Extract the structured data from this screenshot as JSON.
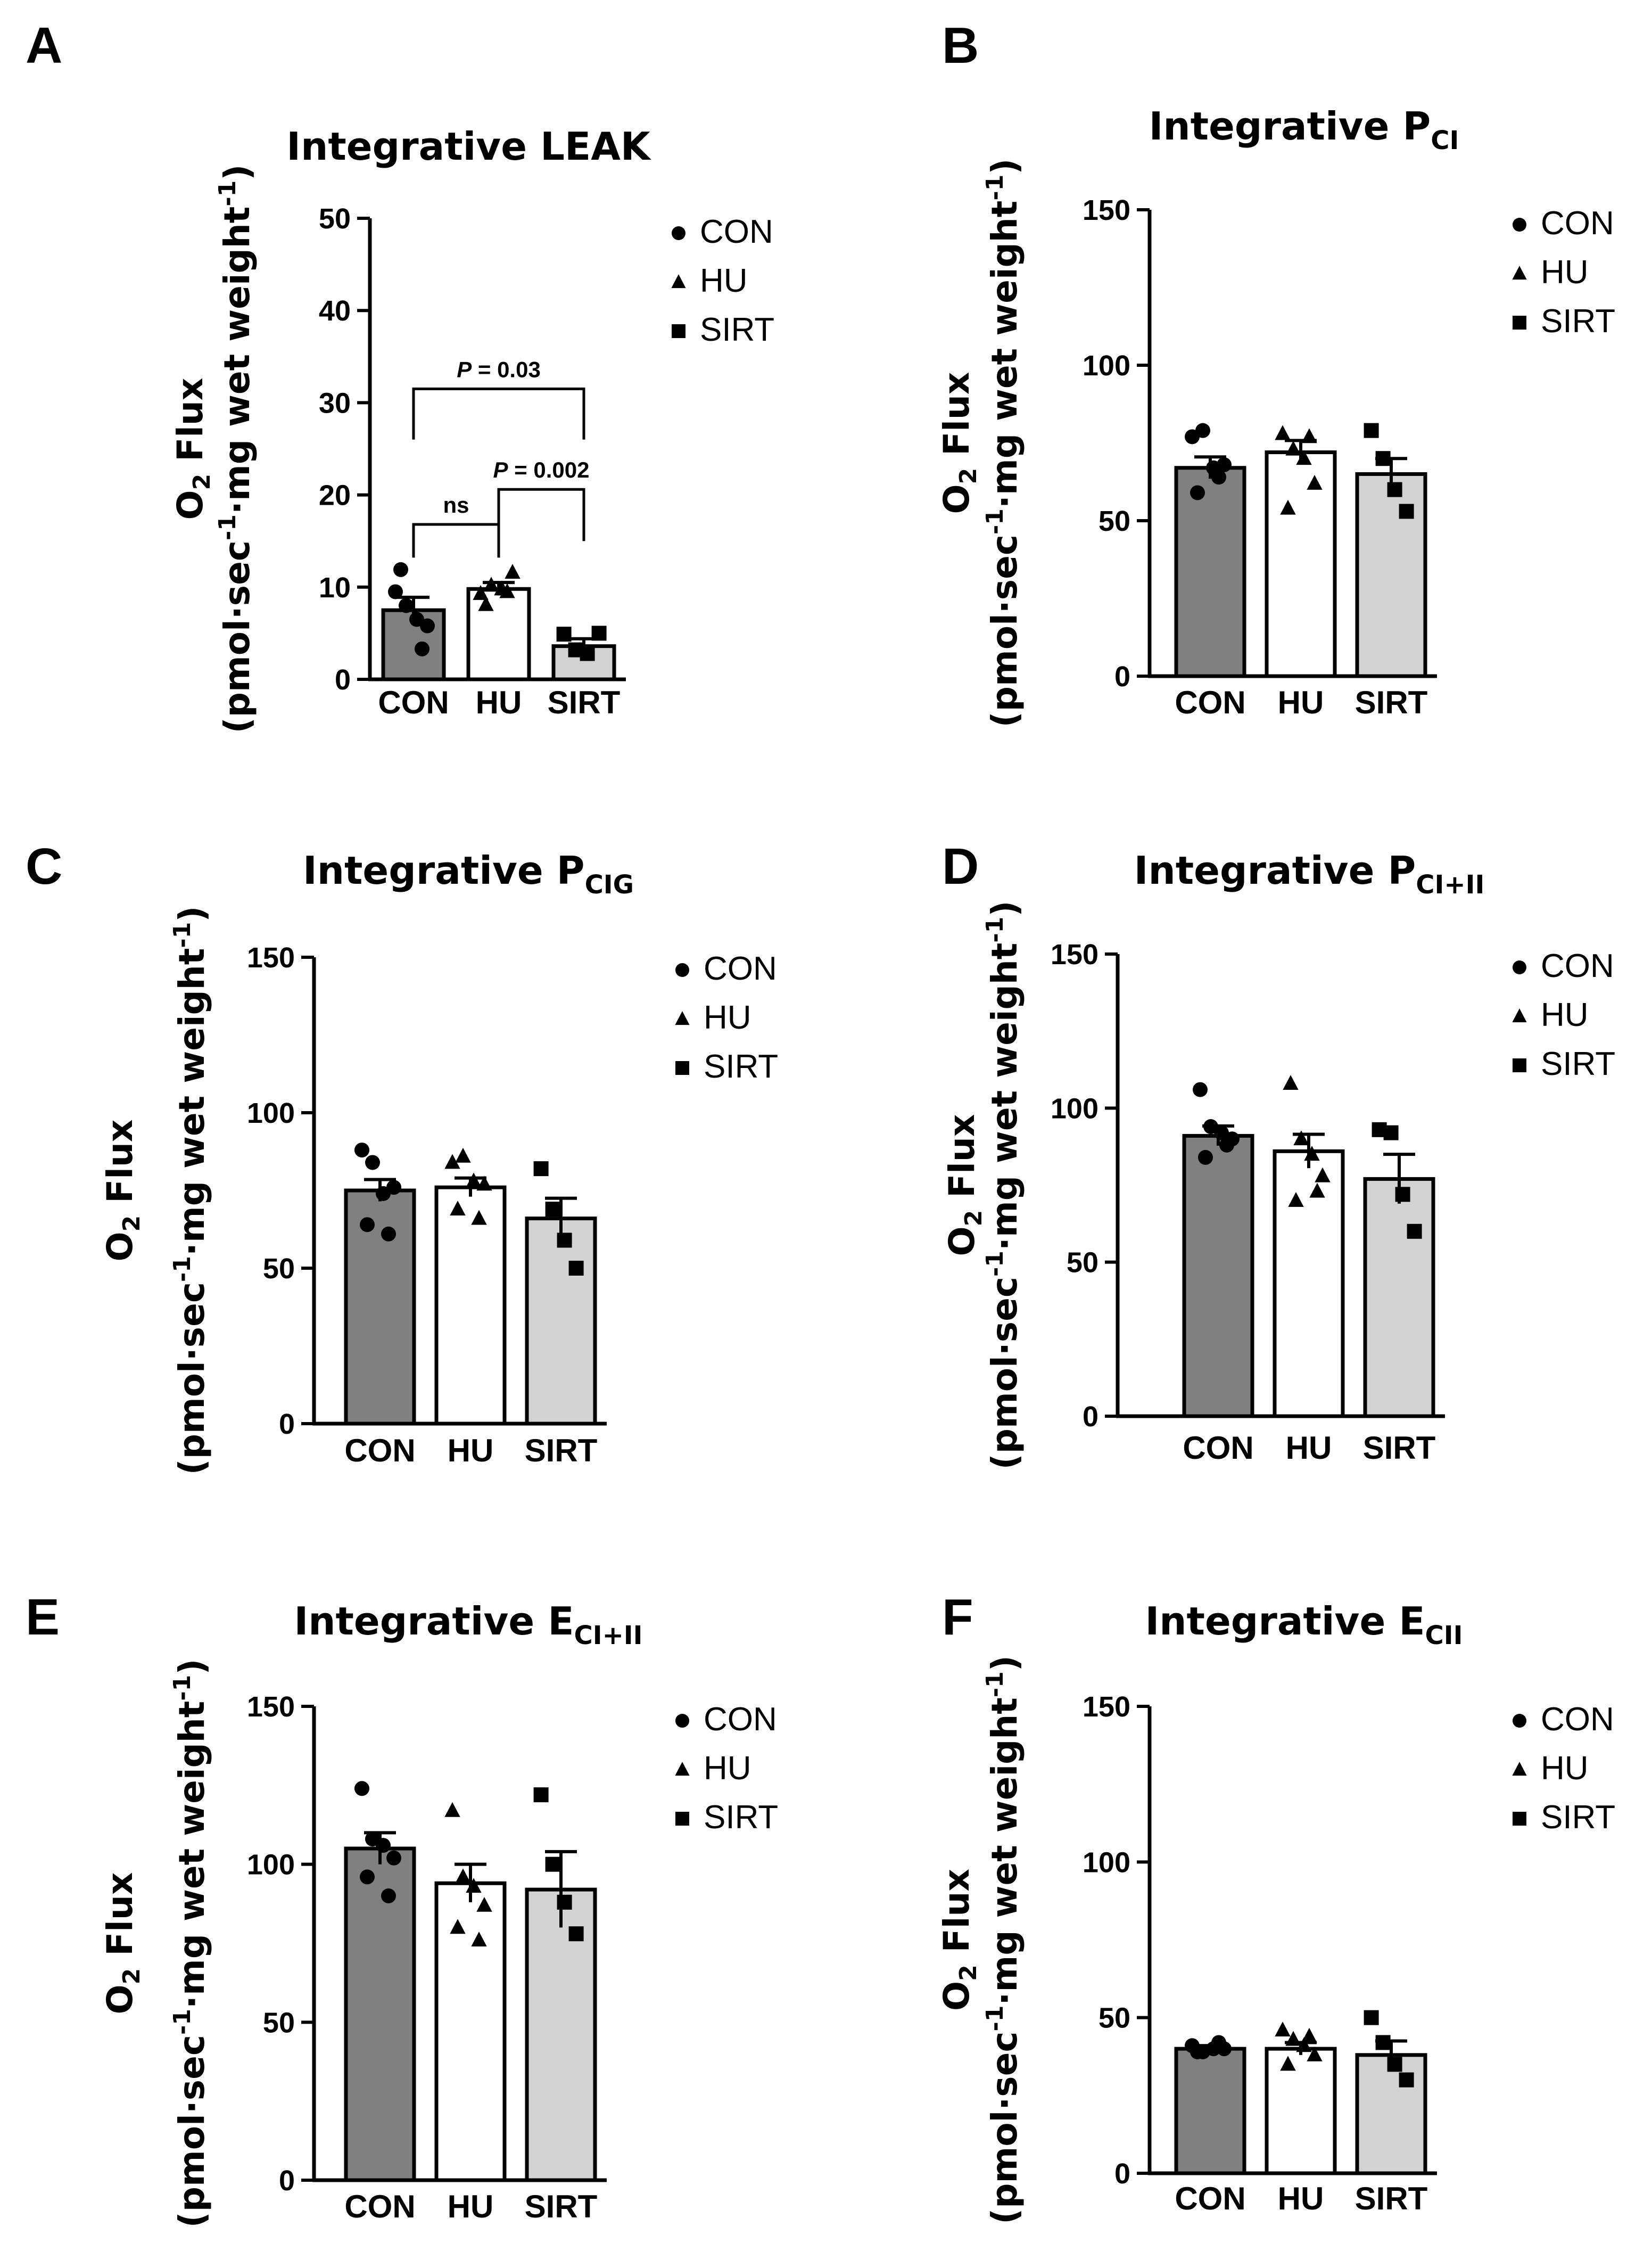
{
  "colors": {
    "CON": "#808080",
    "HU": "#ffffff",
    "SIRT": "#d3d3d3",
    "stroke": "#000000"
  },
  "chart_data": [
    {
      "letter": "A",
      "type": "bar",
      "title": {
        "main": "Integrative LEAK",
        "sub": ""
      },
      "ylabel": {
        "line1_base": "O",
        "line1_sub": "2",
        "line1_rest": " Flux",
        "line2_pre": "(pmol·sec",
        "line2_sup": "-1",
        "line2_post": "·mg wet weight",
        "line2_sup2": "-1",
        "line2_close": ")"
      },
      "ylim": [
        0,
        50
      ],
      "yticks": [
        0,
        10,
        20,
        30,
        40,
        50
      ],
      "categories": [
        "CON",
        "HU",
        "SIRT"
      ],
      "legend": [
        "CON",
        "HU",
        "SIRT"
      ],
      "means": [
        7.5,
        9.8,
        3.6
      ],
      "sem": [
        1.4,
        0.7,
        0.8
      ],
      "points": [
        [
          9.5,
          8.0,
          6.5,
          5.8,
          11.9,
          3.3
        ],
        [
          9.3,
          10.2,
          9.8,
          11.6,
          8.1,
          9.5
        ],
        [
          4.9,
          3.2,
          2.8,
          5.0
        ]
      ],
      "annotations": [
        {
          "label": "P = 0.03",
          "from": 0,
          "to": 2,
          "y": 31.5,
          "drop_from": 26.0,
          "drop_to": 26.0
        },
        {
          "label": "P = 0.002",
          "from": 1,
          "to": 2,
          "y": 20.6,
          "drop_from": 15.0,
          "drop_to": 15.0
        },
        {
          "label": "ns",
          "from": 0,
          "to": 1,
          "y": 16.8,
          "drop_from": 13.2,
          "drop_to": 13.2
        }
      ]
    },
    {
      "letter": "B",
      "type": "bar",
      "title": {
        "main": "Integrative P",
        "sub": "CI"
      },
      "ylabel": {
        "line1_base": "O",
        "line1_sub": "2",
        "line1_rest": " Flux",
        "line2_pre": "(pmol·sec",
        "line2_sup": "-1",
        "line2_post": "·mg wet weight",
        "line2_sup2": "-1",
        "line2_close": ")"
      },
      "ylim": [
        0,
        150
      ],
      "yticks": [
        0,
        50,
        100,
        150
      ],
      "categories": [
        "CON",
        "HU",
        "SIRT"
      ],
      "legend": [
        "CON",
        "HU",
        "SIRT"
      ],
      "means": [
        67,
        72,
        65
      ],
      "sem": [
        3.5,
        3.8,
        5.0
      ],
      "points": [
        [
          77,
          79,
          67,
          68,
          59,
          64
        ],
        [
          78,
          73,
          70,
          62,
          54,
          77
        ],
        [
          79,
          70,
          60,
          53
        ]
      ],
      "annotations": []
    },
    {
      "letter": "C",
      "type": "bar",
      "title": {
        "main": "Integrative P",
        "sub": "CIG"
      },
      "ylabel": {
        "line1_base": "O",
        "line1_sub": "2",
        "line1_rest": " Flux",
        "line2_pre": "(pmol·sec",
        "line2_sup": "-1",
        "line2_post": "·mg wet weight",
        "line2_sup2": "-1",
        "line2_close": ")"
      },
      "ylim": [
        0,
        150
      ],
      "yticks": [
        0,
        50,
        100,
        150
      ],
      "categories": [
        "CON",
        "HU",
        "SIRT"
      ],
      "legend": [
        "CON",
        "HU",
        "SIRT"
      ],
      "means": [
        75,
        76,
        66
      ],
      "sem": [
        3.5,
        3.0,
        6.5
      ],
      "points": [
        [
          88,
          84,
          74,
          76,
          64,
          61
        ],
        [
          84,
          86,
          78,
          77,
          69,
          66
        ],
        [
          82,
          69,
          59,
          50
        ]
      ],
      "annotations": []
    },
    {
      "letter": "D",
      "type": "bar",
      "title": {
        "main": "Integrative P",
        "sub": "CI+II"
      },
      "ylabel": {
        "line1_base": "O",
        "line1_sub": "2",
        "line1_rest": " Flux",
        "line2_pre": "(pmol·sec",
        "line2_sup": "-1",
        "line2_post": "·mg wet weight",
        "line2_sup2": "-1",
        "line2_close": ")"
      },
      "ylim": [
        0,
        150
      ],
      "yticks": [
        0,
        50,
        100,
        150
      ],
      "categories": [
        "CON",
        "HU",
        "SIRT"
      ],
      "legend": [
        "CON",
        "HU",
        "SIRT"
      ],
      "means": [
        91,
        86,
        77
      ],
      "sem": [
        3.2,
        5.5,
        8.0
      ],
      "points": [
        [
          106,
          94,
          92,
          90,
          84,
          88
        ],
        [
          108,
          90,
          85,
          78,
          70,
          73
        ],
        [
          93,
          92,
          72,
          60
        ]
      ],
      "annotations": []
    },
    {
      "letter": "E",
      "type": "bar",
      "title": {
        "main": "Integrative E",
        "sub": "CI+II"
      },
      "ylabel": {
        "line1_base": "O",
        "line1_sub": "2",
        "line1_rest": " Flux",
        "line2_pre": "(pmol·sec",
        "line2_sup": "-1",
        "line2_post": "·mg wet weight",
        "line2_sup2": "-1",
        "line2_close": ")"
      },
      "ylim": [
        0,
        150
      ],
      "yticks": [
        0,
        50,
        100,
        150
      ],
      "categories": [
        "CON",
        "HU",
        "SIRT"
      ],
      "legend": [
        "CON",
        "HU",
        "SIRT"
      ],
      "means": [
        105,
        94,
        92
      ],
      "sem": [
        5.0,
        6.0,
        12.0
      ],
      "points": [
        [
          124,
          108,
          106,
          102,
          96,
          90
        ],
        [
          117,
          96,
          93,
          87,
          80,
          76
        ],
        [
          122,
          100,
          88,
          78
        ]
      ],
      "annotations": []
    },
    {
      "letter": "F",
      "type": "bar",
      "title": {
        "main": "Integrative E",
        "sub": "CII"
      },
      "ylabel": {
        "line1_base": "O",
        "line1_sub": "2",
        "line1_rest": " Flux",
        "line2_pre": "(pmol·sec",
        "line2_sup": "-1",
        "line2_post": "·mg wet weight",
        "line2_sup2": "-1",
        "line2_close": ")"
      },
      "ylim": [
        0,
        150
      ],
      "yticks": [
        0,
        50,
        100,
        150
      ],
      "categories": [
        "CON",
        "HU",
        "SIRT"
      ],
      "legend": [
        "CON",
        "HU",
        "SIRT"
      ],
      "means": [
        40,
        40,
        38
      ],
      "sem": [
        1.0,
        2.0,
        4.5
      ],
      "points": [
        [
          41,
          39,
          40,
          40,
          39,
          42
        ],
        [
          46,
          43,
          41,
          38,
          35,
          44
        ],
        [
          50,
          42,
          35,
          30
        ]
      ],
      "annotations": []
    }
  ]
}
